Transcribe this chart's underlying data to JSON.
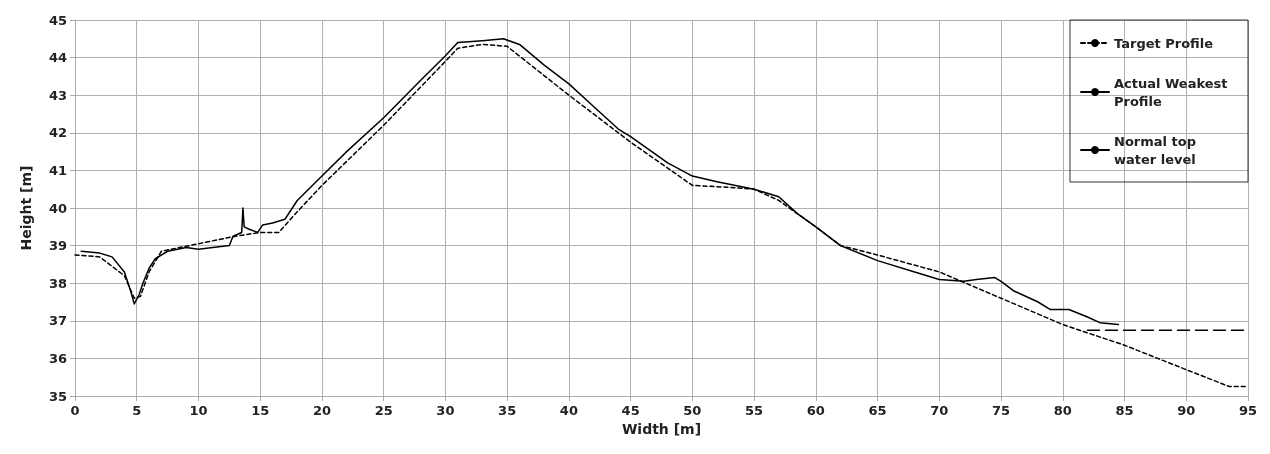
{
  "chart_data": {
    "type": "line",
    "xlabel": "Width [m]",
    "ylabel": "Height [m]",
    "xlim": [
      0,
      95
    ],
    "xticks": [
      0,
      5,
      10,
      15,
      20,
      25,
      30,
      35,
      40,
      45,
      50,
      55,
      60,
      65,
      70,
      75,
      80,
      85,
      90,
      95
    ],
    "ylim": [
      35,
      45
    ],
    "yticks": [
      35,
      36,
      37,
      38,
      39,
      40,
      41,
      42,
      43,
      44,
      45
    ],
    "grid": true,
    "legend": "top right",
    "marker": "none",
    "series": [
      {
        "name": "Target Profile",
        "color": "#000000",
        "line_style": "dotted",
        "x": [
          0,
          2,
          4,
          4.8,
          5.3,
          6,
          7,
          10,
          13,
          15,
          16.5,
          18,
          20,
          25,
          30,
          31,
          33,
          35,
          40,
          45,
          50,
          53,
          55,
          57,
          60,
          62,
          65,
          70,
          75,
          80,
          85,
          90,
          93.5,
          95
        ],
        "values": [
          38.75,
          38.7,
          38.2,
          37.6,
          37.65,
          38.3,
          38.85,
          39.05,
          39.25,
          39.35,
          39.35,
          39.9,
          40.6,
          42.2,
          43.9,
          44.25,
          44.35,
          44.3,
          43.0,
          41.75,
          40.6,
          40.55,
          40.5,
          40.2,
          39.5,
          39.0,
          38.75,
          38.3,
          37.6,
          36.9,
          36.35,
          35.7,
          35.25,
          35.25
        ]
      },
      {
        "name": "Actual Weakest Profile",
        "color": "#000000",
        "line_style": "solid",
        "x": [
          0.5,
          2,
          3,
          4,
          4.5,
          4.8,
          5.2,
          5.5,
          6,
          6.5,
          7.5,
          9,
          10,
          12.5,
          12.8,
          13.5,
          13.6,
          13.7,
          14,
          14.8,
          15.2,
          16,
          17,
          18,
          20,
          22,
          25,
          28,
          30,
          31,
          33,
          34.7,
          36,
          38,
          40,
          42,
          44,
          45,
          48,
          50,
          52,
          55,
          57,
          58.5,
          60,
          62,
          65,
          68,
          70,
          72,
          73,
          74.5,
          75,
          76,
          78,
          79,
          80,
          80.5,
          82,
          83,
          84.5
        ],
        "values": [
          38.85,
          38.8,
          38.7,
          38.3,
          37.8,
          37.45,
          37.7,
          38.0,
          38.4,
          38.65,
          38.85,
          38.95,
          38.9,
          39.0,
          39.25,
          39.35,
          40.0,
          39.5,
          39.45,
          39.35,
          39.55,
          39.6,
          39.7,
          40.2,
          40.85,
          41.5,
          42.4,
          43.4,
          44.05,
          44.4,
          44.45,
          44.5,
          44.35,
          43.8,
          43.3,
          42.7,
          42.1,
          41.9,
          41.2,
          40.85,
          40.7,
          40.5,
          40.3,
          39.85,
          39.5,
          39.0,
          38.6,
          38.3,
          38.1,
          38.05,
          38.1,
          38.15,
          38.05,
          37.8,
          37.5,
          37.3,
          37.3,
          37.3,
          37.1,
          36.95,
          36.9
        ]
      },
      {
        "name": "Normal top water level",
        "color": "#000000",
        "line_style": "dashed",
        "x": [
          82,
          95
        ],
        "values": [
          36.75,
          36.75
        ]
      }
    ]
  }
}
